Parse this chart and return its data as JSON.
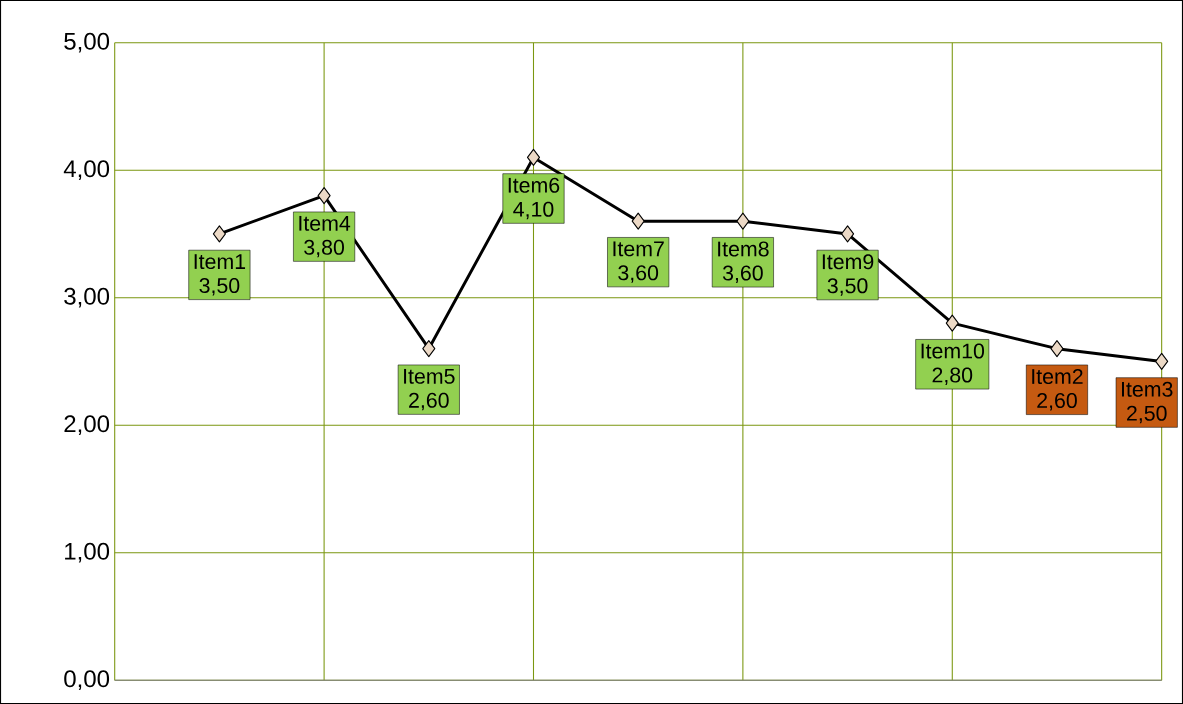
{
  "chart_data": {
    "type": "line",
    "categories": [
      "Item1",
      "Item4",
      "Item5",
      "Item6",
      "Item7",
      "Item8",
      "Item9",
      "Item10",
      "Item2",
      "Item3"
    ],
    "series": [
      {
        "color": "#000000",
        "values": [
          3.5,
          3.8,
          2.6,
          4.1,
          3.6,
          3.6,
          3.5,
          2.8,
          2.6,
          2.5
        ]
      }
    ],
    "value_labels": [
      "3,50",
      "3,80",
      "2,60",
      "4,10",
      "3,60",
      "3,60",
      "3,50",
      "2,80",
      "2,60",
      "2,50"
    ],
    "colors": [
      "#92d050",
      "#92d050",
      "#92d050",
      "#92d050",
      "#92d050",
      "#92d050",
      "#92d050",
      "#92d050",
      "#c55a11",
      "#c55a11"
    ],
    "ylim": [
      0,
      5
    ],
    "yticks": [
      {
        "value": 0,
        "label": "0,00"
      },
      {
        "value": 1,
        "label": "1,00"
      },
      {
        "value": 2,
        "label": "2,00"
      },
      {
        "value": 3,
        "label": "3,00"
      },
      {
        "value": 4,
        "label": "4,00"
      },
      {
        "value": 5,
        "label": "5,00"
      }
    ],
    "grid": true,
    "marker": "diamond",
    "line_style": "solid"
  }
}
